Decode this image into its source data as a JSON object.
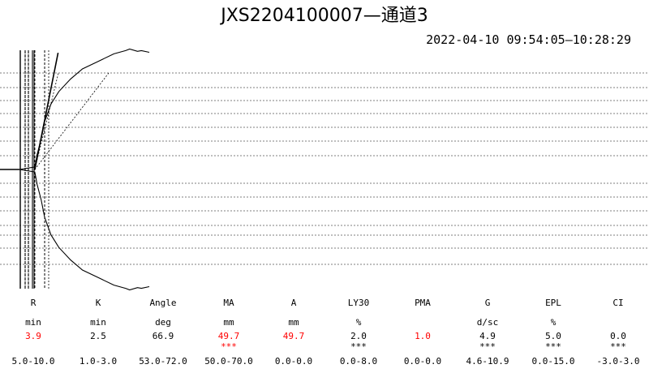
{
  "header": {
    "title": "JXS2204100007—通道3",
    "time_range": "2022-04-10 09:54:05—10:28:29"
  },
  "params": [
    {
      "name": "R",
      "unit": "min",
      "value": "3.9",
      "value_red": true,
      "flag": "",
      "range": "5.0-10.0"
    },
    {
      "name": "K",
      "unit": "min",
      "value": "2.5",
      "value_red": false,
      "flag": "",
      "range": "1.0-3.0"
    },
    {
      "name": "Angle",
      "unit": "deg",
      "value": "66.9",
      "value_red": false,
      "flag": "",
      "range": "53.0-72.0"
    },
    {
      "name": "MA",
      "unit": "mm",
      "value": "49.7",
      "value_red": true,
      "flag": "***",
      "flag_red": true,
      "range": "50.0-70.0"
    },
    {
      "name": "A",
      "unit": "mm",
      "value": "49.7",
      "value_red": true,
      "flag": "",
      "range": "0.0-0.0"
    },
    {
      "name": "LY30",
      "unit": "%",
      "value": "2.0",
      "value_red": false,
      "flag": "***",
      "flag_red": false,
      "range": "0.0-8.0"
    },
    {
      "name": "PMA",
      "unit": "",
      "value": "1.0",
      "value_red": true,
      "flag": "",
      "range": "0.0-0.0"
    },
    {
      "name": "G",
      "unit": "d/sc",
      "value": "4.9",
      "value_red": false,
      "flag": "***",
      "flag_red": false,
      "range": "4.6-10.9"
    },
    {
      "name": "EPL",
      "unit": "%",
      "value": "5.0",
      "value_red": false,
      "flag": "***",
      "flag_red": false,
      "range": "0.0-15.0"
    },
    {
      "name": "CI",
      "unit": "",
      "value": "0.0",
      "value_red": false,
      "flag": "***",
      "flag_red": false,
      "range": "-3.0-3.0"
    }
  ],
  "chart_data": {
    "type": "line",
    "title": "JXS2204100007—通道3",
    "xlabel": "",
    "ylabel": "",
    "grid": true,
    "grid_style": "dashed-horizontal",
    "x_unit": "min",
    "y_unit": "mm",
    "xlim": [
      0,
      35
    ],
    "ylim": [
      -50,
      50
    ],
    "markers": {
      "R": 3.9,
      "K_end": 6.4
    },
    "angle_deg": 66.9,
    "series": [
      {
        "color": "#000000",
        "x": [
          0,
          3.9,
          4.5,
          5.5,
          6.4,
          8,
          10,
          13,
          16,
          20,
          24,
          27,
          28,
          30,
          31,
          33
        ],
        "y": [
          0,
          1,
          6,
          12,
          19,
          26,
          31,
          36,
          40,
          43,
          46,
          47.3,
          47.9,
          47.0,
          47.3,
          46.6
        ]
      },
      {
        "color": "#000000",
        "x": [
          0,
          3.9,
          4.5,
          5.5,
          6.4,
          8,
          10,
          13,
          16,
          20,
          24,
          27,
          28,
          30,
          31,
          33
        ],
        "y": [
          0,
          -1,
          -6,
          -12,
          -19,
          -26,
          -31,
          -36,
          -40,
          -43,
          -46,
          -47.3,
          -47.9,
          -47.0,
          -47.3,
          -46.6
        ]
      }
    ]
  }
}
